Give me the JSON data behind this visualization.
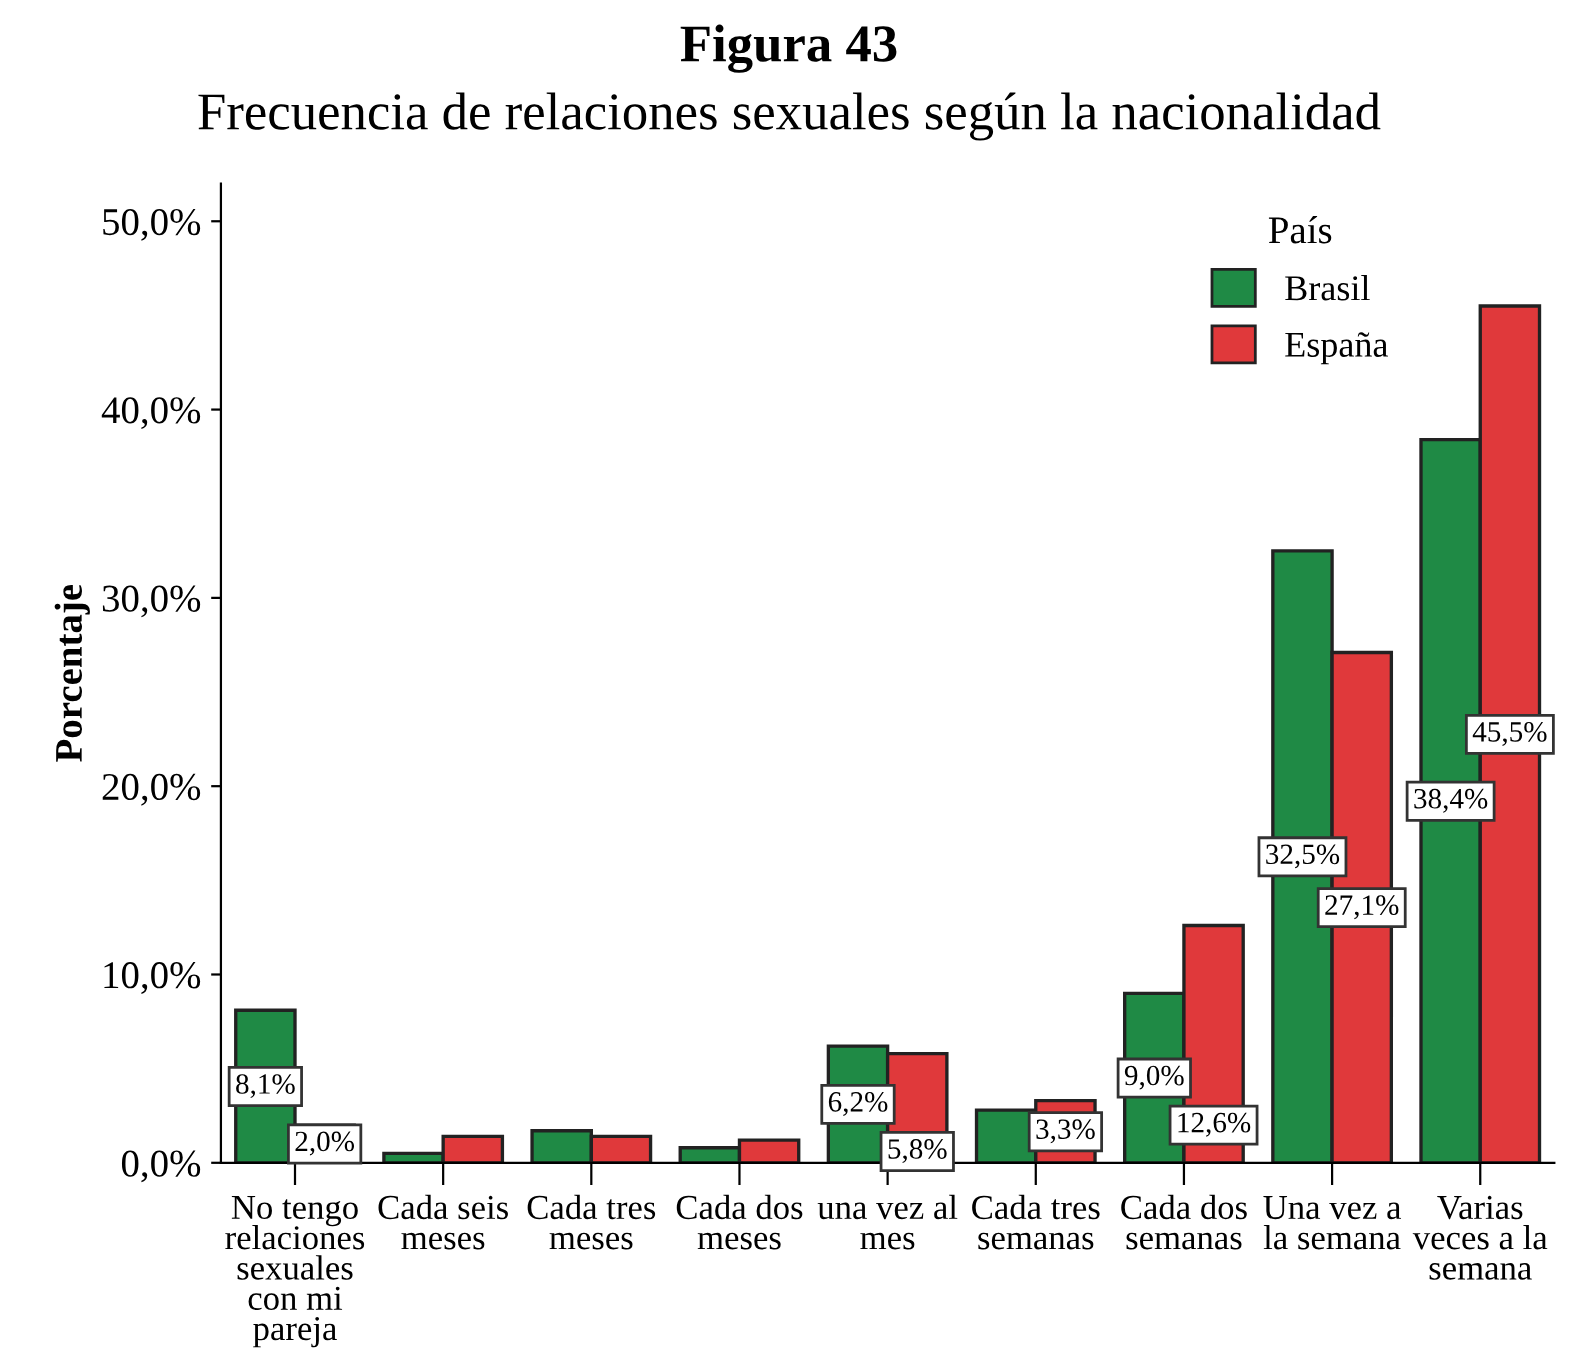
{
  "chart_data": {
    "type": "bar",
    "title": "Figura 43",
    "subtitle": "Frecuencia de relaciones sexuales según la nacionalidad",
    "ylabel": "Porcentaje",
    "legend_title": "País",
    "legend": "top right",
    "grid": false,
    "categories": [
      "No tengo relaciones sexuales con mi pareja",
      "Cada seis meses",
      "Cada tres meses",
      "Cada dos meses",
      "una vez al mes",
      "Cada tres semanas",
      "Cada dos semanas",
      "Una vez a la semana",
      "Varias veces a la semana"
    ],
    "series": [
      {
        "name": "Brasil",
        "color": "#1f8a45",
        "values": [
          8.1,
          0.5,
          1.7,
          0.8,
          6.2,
          2.8,
          9.0,
          32.5,
          38.4
        ],
        "value_labels": [
          "8,1%",
          null,
          null,
          null,
          "6,2%",
          null,
          "9,0%",
          "32,5%",
          "38,4%"
        ]
      },
      {
        "name": "España",
        "color": "#e0393b",
        "values": [
          2.0,
          1.4,
          1.4,
          1.2,
          5.8,
          3.3,
          12.6,
          27.1,
          45.5
        ],
        "value_labels": [
          "2,0%",
          null,
          null,
          null,
          "5,8%",
          "3,3%",
          "12,6%",
          "27,1%",
          "45,5%"
        ]
      }
    ],
    "ylim": [
      0,
      52
    ],
    "yticks": [
      {
        "value": 0,
        "label": "0,0%"
      },
      {
        "value": 10,
        "label": "10,0%"
      },
      {
        "value": 20,
        "label": "20,0%"
      },
      {
        "value": 30,
        "label": "30,0%"
      },
      {
        "value": 40,
        "label": "40,0%"
      },
      {
        "value": 50,
        "label": "50,0%"
      }
    ]
  }
}
